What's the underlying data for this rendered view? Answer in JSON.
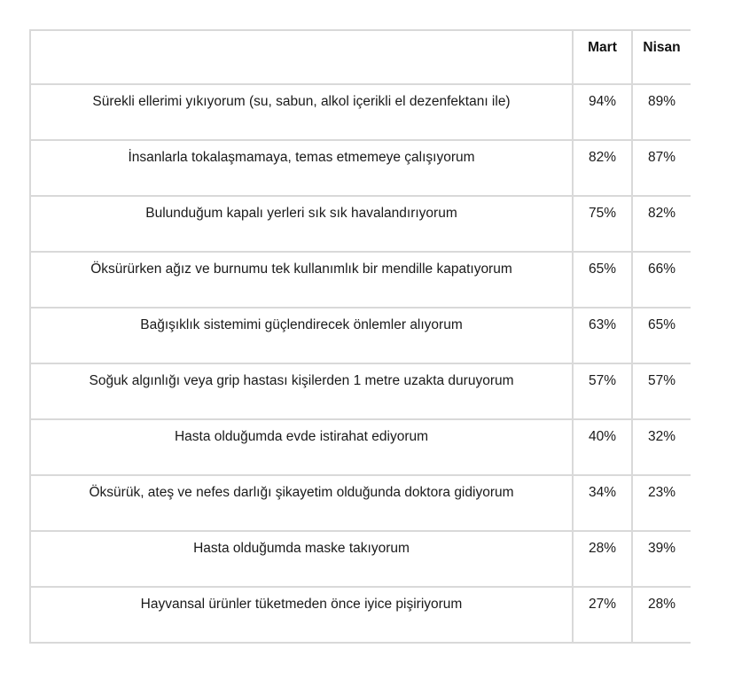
{
  "colors": {
    "background": "#ffffff",
    "border": "#d9d9d9",
    "text": "#1a1a1a",
    "header_text": "#111111"
  },
  "table": {
    "headers": {
      "label": "",
      "mart": "Mart",
      "nisan": "Nisan"
    },
    "rows": [
      {
        "label": "Sürekli ellerimi yıkıyorum (su, sabun, alkol içerikli el dezenfektanı ile)",
        "mart": "94%",
        "nisan": "89%"
      },
      {
        "label": "İnsanlarla tokalaşmamaya, temas etmemeye çalışıyorum",
        "mart": "82%",
        "nisan": "87%"
      },
      {
        "label": "Bulunduğum kapalı yerleri sık sık havalandırıyorum",
        "mart": "75%",
        "nisan": "82%"
      },
      {
        "label": "Öksürürken ağız ve burnumu tek kullanımlık bir mendille kapatıyorum",
        "mart": "65%",
        "nisan": "66%"
      },
      {
        "label": "Bağışıklık sistemimi güçlendirecek önlemler alıyorum",
        "mart": "63%",
        "nisan": "65%"
      },
      {
        "label": "Soğuk algınlığı veya grip hastası kişilerden 1 metre uzakta duruyorum",
        "mart": "57%",
        "nisan": "57%"
      },
      {
        "label": "Hasta olduğumda evde istirahat ediyorum",
        "mart": "40%",
        "nisan": "32%"
      },
      {
        "label": "Öksürük, ateş ve nefes darlığı şikayetim olduğunda doktora gidiyorum",
        "mart": "34%",
        "nisan": "23%"
      },
      {
        "label": "Hasta olduğumda maske takıyorum",
        "mart": "28%",
        "nisan": "39%"
      },
      {
        "label": "Hayvansal ürünler tüketmeden önce iyice pişiriyorum",
        "mart": "27%",
        "nisan": "28%"
      }
    ]
  },
  "chart_data": {
    "type": "table",
    "title": "",
    "columns": [
      "",
      "Mart",
      "Nisan"
    ],
    "categories": [
      "Sürekli ellerimi yıkıyorum (su, sabun, alkol içerikli el dezenfektanı ile)",
      "İnsanlarla tokalaşmamaya, temas etmemeye çalışıyorum",
      "Bulunduğum kapalı yerleri sık sık havalandırıyorum",
      "Öksürürken ağız ve burnumu tek kullanımlık bir mendille kapatıyorum",
      "Bağışıklık sistemimi güçlendirecek önlemler alıyorum",
      "Soğuk algınlığı veya grip hastası kişilerden 1 metre uzakta duruyorum",
      "Hasta olduğumda evde istirahat ediyorum",
      "Öksürük, ateş ve nefes darlığı şikayetim olduğunda doktora gidiyorum",
      "Hasta olduğumda maske takıyorum",
      "Hayvansal ürünler tüketmeden önce iyice pişiriyorum"
    ],
    "series": [
      {
        "name": "Mart",
        "values": [
          94,
          82,
          75,
          65,
          63,
          57,
          40,
          34,
          28,
          27
        ]
      },
      {
        "name": "Nisan",
        "values": [
          89,
          87,
          82,
          66,
          65,
          57,
          32,
          23,
          39,
          28
        ]
      }
    ],
    "value_unit": "%"
  }
}
